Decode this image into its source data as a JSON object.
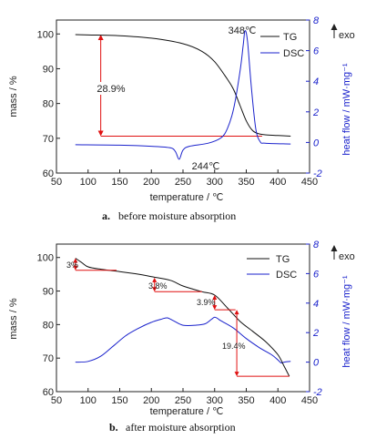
{
  "chart_data": [
    {
      "type": "line",
      "caption_letter": "a.",
      "caption_text": "before moisture absorption",
      "xlabel": "temperature / ℃",
      "ylabel": "mass / %",
      "y2label": "heat flow / mW·mg⁻¹",
      "exo_label": "exo",
      "xlim": [
        50,
        450
      ],
      "ylim": [
        60,
        104
      ],
      "y2lim": [
        -2,
        8
      ],
      "xticks": [
        "50",
        "100",
        "150",
        "200",
        "250",
        "300",
        "350",
        "400",
        "450"
      ],
      "yticks": [
        "60",
        "70",
        "80",
        "90",
        "100"
      ],
      "y2ticks": [
        "-2",
        "0",
        "2",
        "4",
        "6",
        "8"
      ],
      "series": [
        {
          "name": "TG",
          "axis": "left",
          "color": "#111111",
          "x": [
            80,
            100,
            150,
            200,
            250,
            280,
            300,
            320,
            330,
            340,
            350,
            360,
            370,
            380,
            400,
            420
          ],
          "y": [
            99.8,
            99.7,
            99.5,
            98.8,
            97.2,
            95.0,
            92.0,
            87.0,
            84.0,
            79.5,
            75.0,
            72.2,
            71.3,
            71.0,
            70.8,
            70.6
          ]
        },
        {
          "name": "DSC",
          "axis": "right",
          "color": "#1a22cc",
          "x": [
            80,
            150,
            200,
            230,
            238,
            244,
            250,
            260,
            290,
            310,
            320,
            330,
            340,
            345,
            348,
            352,
            358,
            365,
            372,
            380,
            420
          ],
          "y": [
            -0.15,
            -0.18,
            -0.25,
            -0.35,
            -0.6,
            -1.1,
            -0.5,
            -0.25,
            -0.05,
            0.3,
            0.9,
            2.2,
            4.6,
            6.3,
            7.3,
            6.6,
            3.6,
            0.9,
            0.05,
            -0.05,
            -0.1
          ]
        }
      ],
      "annotations": [
        {
          "text": "348℃"
        },
        {
          "text": "244℃"
        },
        {
          "text": "28.9%"
        }
      ]
    },
    {
      "type": "line",
      "caption_letter": "b.",
      "caption_text": "after moisture absorption",
      "xlabel": "temperature / ℃",
      "ylabel": "mass / %",
      "y2label": "heat flow / mW·mg⁻¹",
      "exo_label": "exo",
      "xlim": [
        50,
        450
      ],
      "ylim": [
        60,
        104
      ],
      "y2lim": [
        -2,
        8
      ],
      "xticks": [
        "50",
        "100",
        "150",
        "200",
        "250",
        "300",
        "350",
        "400",
        "450"
      ],
      "yticks": [
        "60",
        "70",
        "80",
        "90",
        "100"
      ],
      "y2ticks": [
        "-2",
        "0",
        "2",
        "4",
        "6",
        "8"
      ],
      "series": [
        {
          "name": "TG",
          "axis": "left",
          "color": "#111111",
          "x": [
            80,
            90,
            100,
            120,
            150,
            180,
            200,
            230,
            250,
            280,
            300,
            320,
            340,
            360,
            380,
            400,
            410,
            418
          ],
          "y": [
            99.8,
            98.5,
            97.2,
            96.5,
            95.8,
            95.0,
            94.3,
            93.2,
            91.5,
            89.8,
            88.8,
            85.0,
            81.0,
            78.0,
            75.0,
            71.0,
            67.5,
            64.6
          ]
        },
        {
          "name": "DSC",
          "axis": "right",
          "color": "#1a22cc",
          "x": [
            80,
            100,
            120,
            140,
            160,
            180,
            200,
            215,
            225,
            235,
            250,
            270,
            285,
            295,
            300,
            305,
            310,
            330,
            350,
            370,
            390,
            400,
            405,
            410,
            420
          ],
          "y": [
            0.0,
            0.05,
            0.4,
            1.1,
            1.8,
            2.3,
            2.7,
            2.9,
            3.0,
            2.8,
            2.5,
            2.5,
            2.6,
            2.9,
            3.05,
            2.95,
            2.8,
            2.3,
            1.6,
            1.0,
            0.5,
            0.15,
            -0.05,
            0.0,
            0.05
          ]
        }
      ],
      "annotations": [
        {
          "text": "3%"
        },
        {
          "text": "3.8%"
        },
        {
          "text": "3.9%"
        },
        {
          "text": "19.4%"
        }
      ]
    }
  ]
}
